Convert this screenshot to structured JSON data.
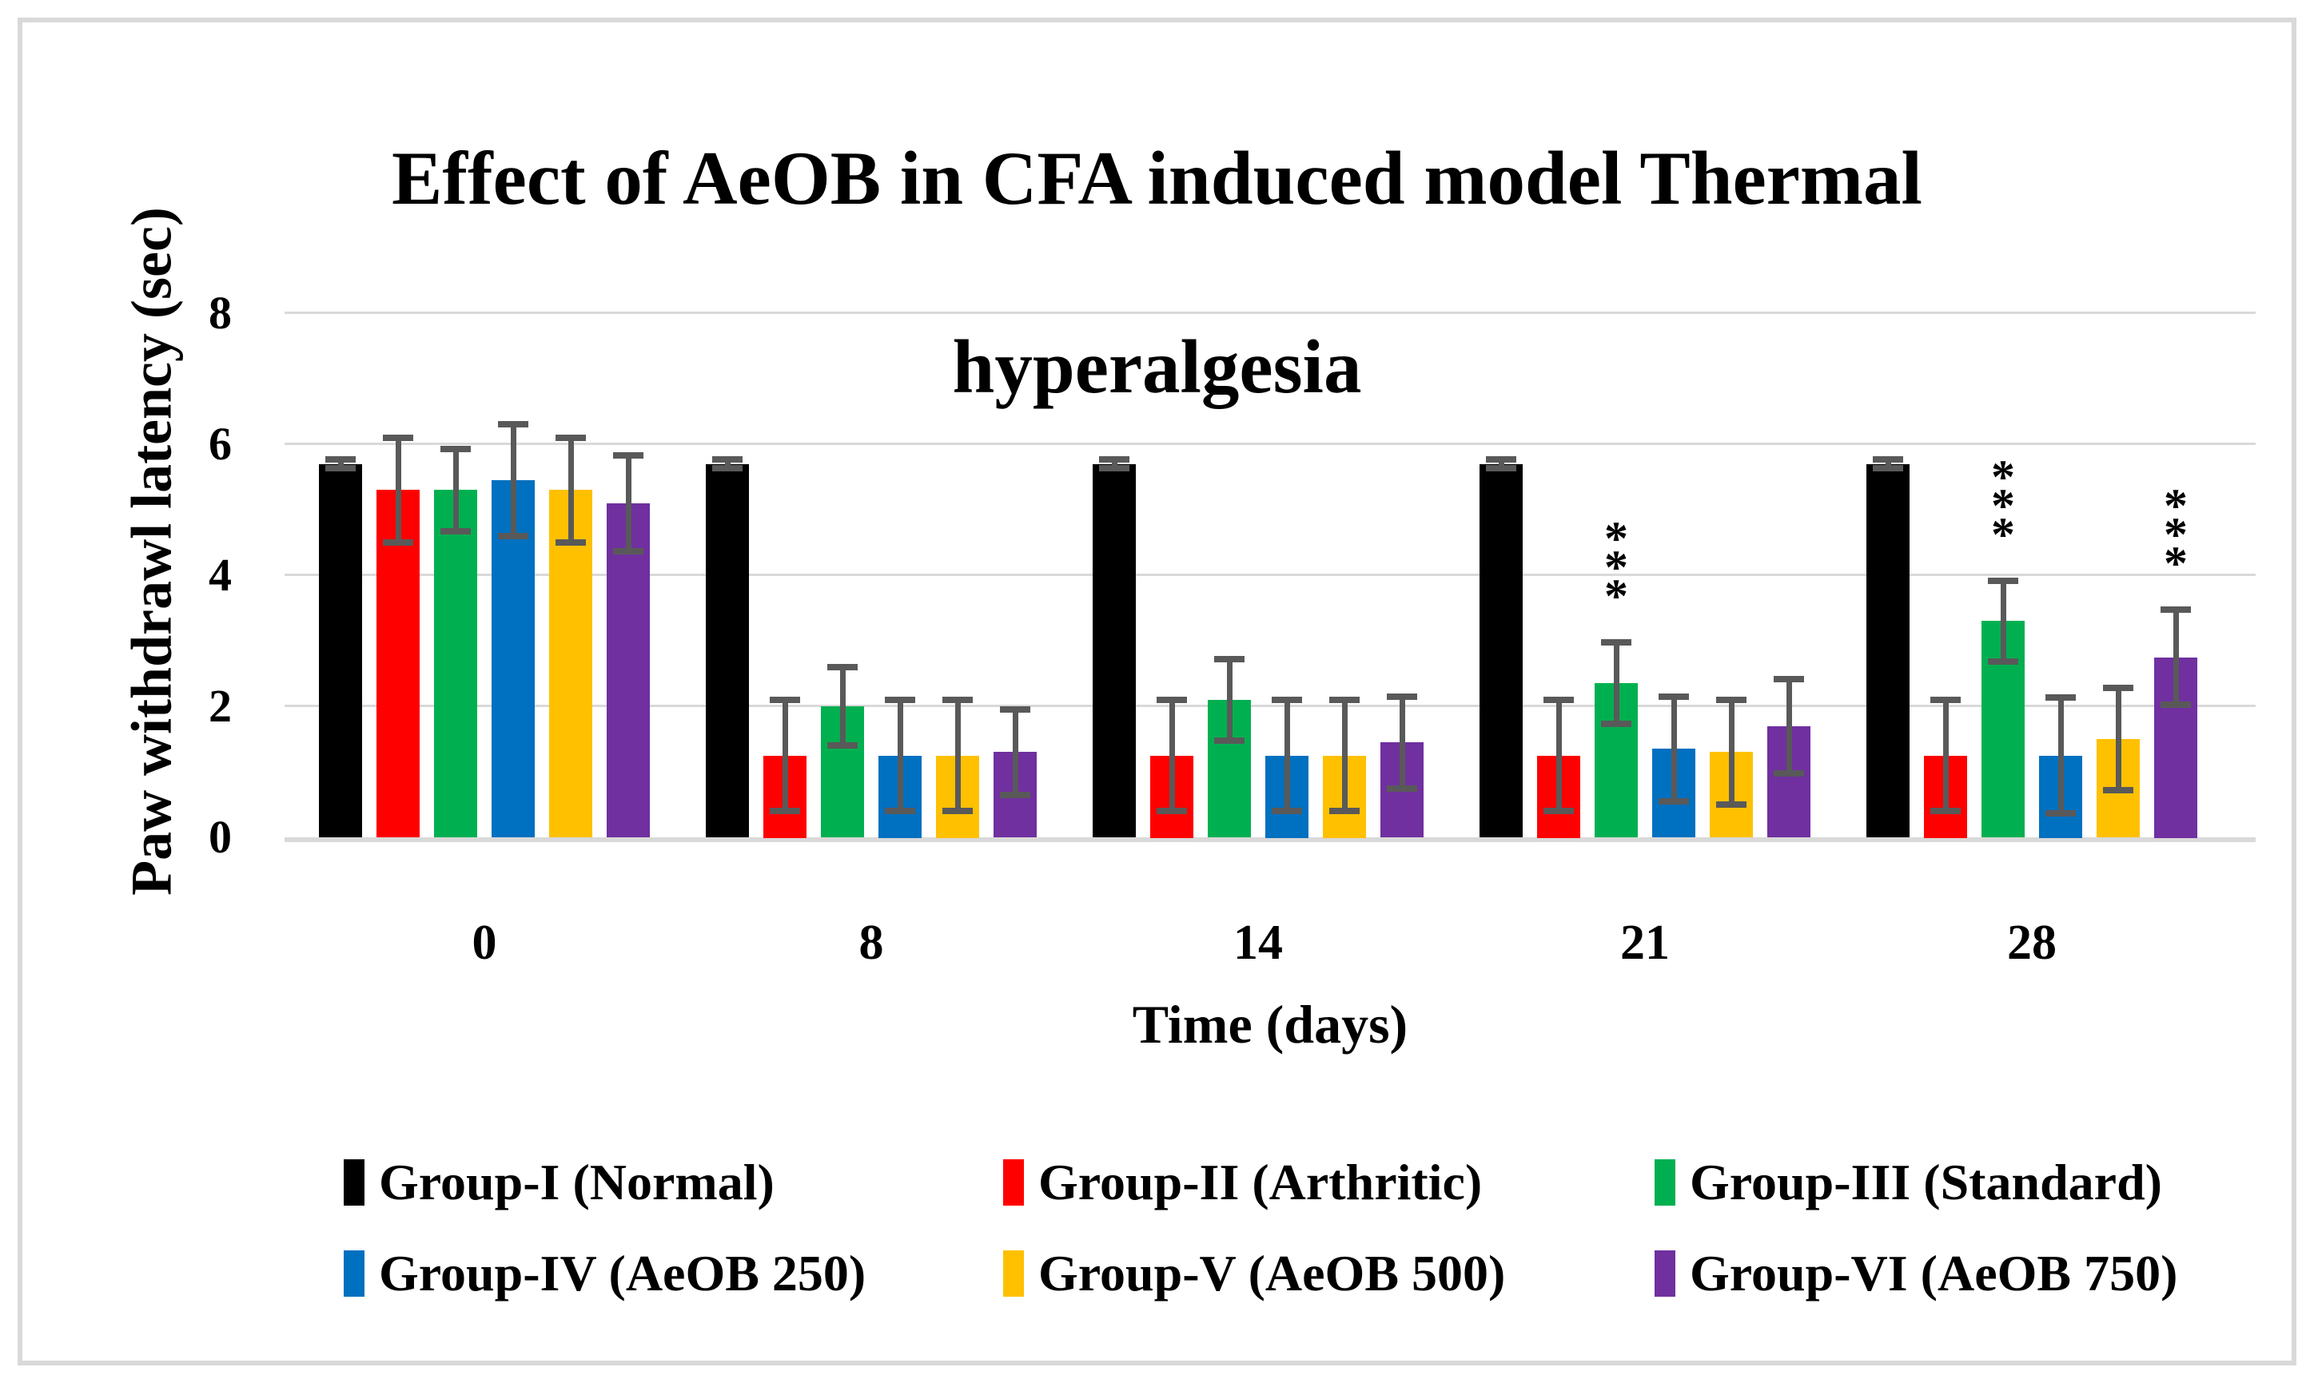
{
  "chart_data": {
    "type": "bar",
    "title": "Effect of AeOB in CFA induced model Thermal hyperalgesia",
    "title_lines": [
      "Effect of AeOB in CFA induced model Thermal",
      "hyperalgesia"
    ],
    "ylabel": "Paw withdrawl latency (sec)",
    "xlabel": "Time (days)",
    "categories": [
      "0",
      "8",
      "14",
      "21",
      "28"
    ],
    "ylim": [
      0,
      8
    ],
    "yticks": [
      0,
      2,
      4,
      6,
      8
    ],
    "grid": true,
    "legend_position": "bottom",
    "significance_symbol": "***",
    "series": [
      {
        "name": "Group-I (Normal)",
        "color": "#000000",
        "values": [
          5.7,
          5.7,
          5.7,
          5.7,
          5.7
        ],
        "errors": [
          0.07,
          0.07,
          0.07,
          0.07,
          0.07
        ],
        "significance": [
          null,
          null,
          null,
          null,
          null
        ]
      },
      {
        "name": "Group-II (Arthritic)",
        "color": "#ff0000",
        "values": [
          5.3,
          1.25,
          1.25,
          1.25,
          1.25
        ],
        "errors": [
          0.8,
          0.85,
          0.85,
          0.85,
          0.85
        ],
        "significance": [
          null,
          null,
          null,
          null,
          null
        ]
      },
      {
        "name": "Group-III (Standard)",
        "color": "#00b050",
        "values": [
          5.3,
          2.0,
          2.1,
          2.35,
          3.3
        ],
        "errors": [
          0.63,
          0.6,
          0.62,
          0.62,
          0.62
        ],
        "significance": [
          null,
          null,
          null,
          "***",
          "***"
        ]
      },
      {
        "name": "Group-IV (AeOB 250)",
        "color": "#0070c0",
        "values": [
          5.45,
          1.25,
          1.25,
          1.35,
          1.25
        ],
        "errors": [
          0.85,
          0.85,
          0.85,
          0.8,
          0.88
        ],
        "significance": [
          null,
          null,
          null,
          null,
          null
        ]
      },
      {
        "name": "Group-V (AeOB 500)",
        "color": "#ffc000",
        "values": [
          5.3,
          1.25,
          1.25,
          1.3,
          1.5
        ],
        "errors": [
          0.8,
          0.85,
          0.85,
          0.8,
          0.78
        ],
        "significance": [
          null,
          null,
          null,
          null,
          null
        ]
      },
      {
        "name": "Group-VI (AeOB 750)",
        "color": "#7030a0",
        "values": [
          5.1,
          1.3,
          1.45,
          1.7,
          2.75
        ],
        "errors": [
          0.73,
          0.65,
          0.7,
          0.72,
          0.72
        ],
        "significance": [
          null,
          null,
          null,
          null,
          "***"
        ]
      }
    ],
    "colors": {
      "gridline": "#d9d9d9",
      "error_bar": "#595959",
      "frame_border": "#d9d9d9",
      "text": "#000000"
    }
  }
}
